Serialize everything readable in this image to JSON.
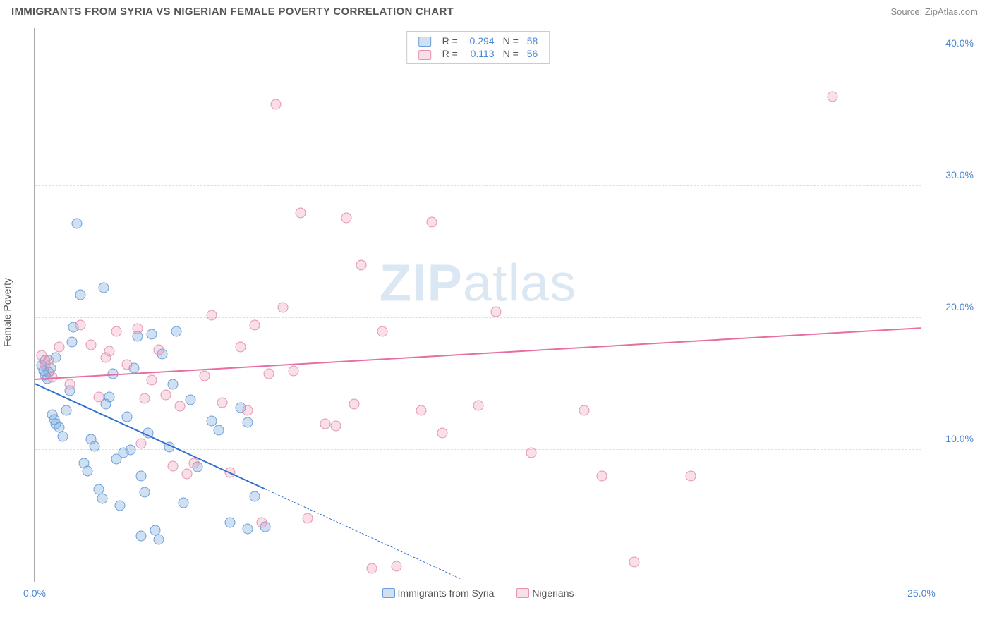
{
  "header": {
    "title": "IMMIGRANTS FROM SYRIA VS NIGERIAN FEMALE POVERTY CORRELATION CHART",
    "source_prefix": "Source: ",
    "source": "ZipAtlas.com"
  },
  "watermark": {
    "bold": "ZIP",
    "rest": "atlas",
    "color": "#dbe7f3"
  },
  "chart": {
    "type": "scatter",
    "ylabel": "Female Poverty",
    "xlim": [
      0,
      25
    ],
    "ylim": [
      0,
      42
    ],
    "xticks": [
      0,
      25
    ],
    "xtick_labels": [
      "0.0%",
      "25.0%"
    ],
    "yticks": [
      10,
      20,
      30,
      40
    ],
    "ytick_labels": [
      "10.0%",
      "20.0%",
      "30.0%",
      "40.0%"
    ],
    "tick_color": "#4b86d6",
    "grid_color": "#dddddd",
    "axis_color": "#aaaaaa",
    "background_color": "#ffffff",
    "marker_size": 15,
    "series": [
      {
        "name": "Immigrants from Syria",
        "fill": "rgba(120,165,220,0.35)",
        "stroke": "#6a9fd8",
        "line_color": "#2e6fd0",
        "R": "-0.294",
        "N": "58",
        "trend": {
          "x1": 0,
          "y1": 15.0,
          "x2_solid": 6.5,
          "y2_solid": 7.0,
          "x2_dash": 12.0,
          "y2_dash": 0.2
        },
        "points": [
          [
            0.2,
            16.4
          ],
          [
            0.25,
            16.0
          ],
          [
            0.3,
            15.7
          ],
          [
            0.35,
            15.4
          ],
          [
            0.4,
            15.9
          ],
          [
            0.45,
            16.2
          ],
          [
            0.5,
            12.7
          ],
          [
            0.55,
            12.3
          ],
          [
            0.6,
            12.0
          ],
          [
            0.7,
            11.7
          ],
          [
            0.8,
            11.0
          ],
          [
            0.9,
            13.0
          ],
          [
            1.0,
            14.5
          ],
          [
            1.05,
            18.2
          ],
          [
            1.1,
            19.3
          ],
          [
            1.2,
            27.2
          ],
          [
            1.3,
            21.8
          ],
          [
            1.4,
            9.0
          ],
          [
            1.5,
            8.4
          ],
          [
            1.6,
            10.8
          ],
          [
            1.7,
            10.3
          ],
          [
            1.8,
            7.0
          ],
          [
            1.9,
            6.3
          ],
          [
            1.95,
            22.3
          ],
          [
            2.0,
            13.5
          ],
          [
            2.1,
            14.0
          ],
          [
            2.2,
            15.8
          ],
          [
            2.3,
            9.3
          ],
          [
            2.4,
            5.8
          ],
          [
            2.5,
            9.8
          ],
          [
            2.6,
            12.5
          ],
          [
            2.7,
            10.0
          ],
          [
            2.8,
            16.2
          ],
          [
            2.9,
            18.6
          ],
          [
            3.0,
            8.0
          ],
          [
            3.0,
            3.5
          ],
          [
            3.1,
            6.8
          ],
          [
            3.2,
            11.3
          ],
          [
            3.3,
            18.8
          ],
          [
            3.4,
            3.9
          ],
          [
            3.5,
            3.2
          ],
          [
            3.6,
            17.3
          ],
          [
            3.8,
            10.2
          ],
          [
            3.9,
            15.0
          ],
          [
            4.0,
            19.0
          ],
          [
            4.2,
            6.0
          ],
          [
            4.4,
            13.8
          ],
          [
            4.6,
            8.7
          ],
          [
            5.0,
            12.2
          ],
          [
            5.2,
            11.5
          ],
          [
            5.5,
            4.5
          ],
          [
            5.8,
            13.2
          ],
          [
            6.0,
            4.0
          ],
          [
            6.0,
            12.1
          ],
          [
            6.2,
            6.5
          ],
          [
            6.5,
            4.2
          ],
          [
            0.3,
            16.8
          ],
          [
            0.6,
            17.0
          ]
        ]
      },
      {
        "name": "Nigerians",
        "fill": "rgba(235,150,175,0.30)",
        "stroke": "#e493af",
        "line_color": "#e76ea0",
        "R": "0.113",
        "N": "56",
        "trend": {
          "x1": 0,
          "y1": 15.3,
          "x2_solid": 25,
          "y2_solid": 19.2
        },
        "points": [
          [
            0.2,
            17.2
          ],
          [
            0.3,
            16.5
          ],
          [
            0.5,
            15.5
          ],
          [
            0.7,
            17.8
          ],
          [
            1.3,
            19.5
          ],
          [
            1.6,
            18.0
          ],
          [
            1.8,
            14.0
          ],
          [
            2.1,
            17.5
          ],
          [
            2.3,
            19.0
          ],
          [
            2.6,
            16.5
          ],
          [
            2.9,
            19.2
          ],
          [
            3.0,
            10.5
          ],
          [
            3.1,
            13.9
          ],
          [
            3.3,
            15.3
          ],
          [
            3.5,
            17.6
          ],
          [
            3.7,
            14.2
          ],
          [
            3.9,
            8.8
          ],
          [
            4.1,
            13.3
          ],
          [
            4.3,
            8.2
          ],
          [
            4.5,
            9.0
          ],
          [
            4.8,
            15.6
          ],
          [
            5.0,
            20.2
          ],
          [
            5.3,
            13.6
          ],
          [
            5.5,
            8.3
          ],
          [
            5.8,
            17.8
          ],
          [
            6.0,
            13.0
          ],
          [
            6.2,
            19.5
          ],
          [
            6.4,
            4.5
          ],
          [
            6.6,
            15.8
          ],
          [
            6.8,
            36.2
          ],
          [
            7.0,
            20.8
          ],
          [
            7.3,
            16.0
          ],
          [
            7.5,
            28.0
          ],
          [
            7.7,
            4.8
          ],
          [
            8.2,
            12.0
          ],
          [
            8.5,
            11.8
          ],
          [
            8.8,
            27.6
          ],
          [
            9.0,
            13.5
          ],
          [
            9.2,
            24.0
          ],
          [
            9.5,
            1.0
          ],
          [
            9.8,
            19.0
          ],
          [
            10.2,
            1.2
          ],
          [
            10.9,
            13.0
          ],
          [
            11.2,
            27.3
          ],
          [
            11.5,
            11.3
          ],
          [
            12.5,
            13.4
          ],
          [
            13.0,
            20.5
          ],
          [
            14.0,
            9.8
          ],
          [
            15.5,
            13.0
          ],
          [
            16.0,
            8.0
          ],
          [
            16.9,
            1.5
          ],
          [
            18.5,
            8.0
          ],
          [
            22.5,
            36.8
          ],
          [
            2.0,
            17.0
          ],
          [
            1.0,
            15.0
          ],
          [
            0.4,
            16.8
          ]
        ]
      }
    ],
    "legend_top": {
      "r_label": "R =",
      "n_label": "N =",
      "value_color": "#4b86d6",
      "label_color": "#555555"
    },
    "legend_bottom": {
      "label_color": "#555555"
    }
  }
}
